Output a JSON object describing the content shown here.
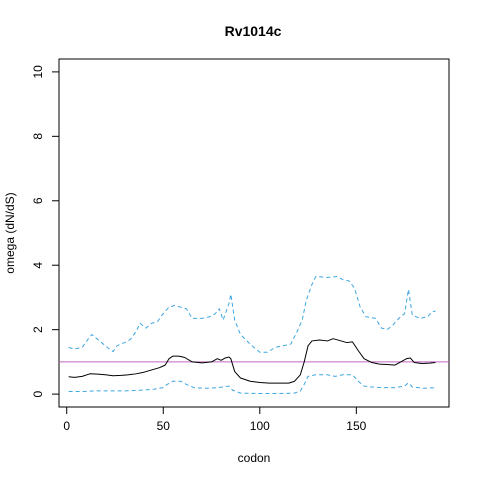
{
  "chart_data": {
    "type": "line",
    "title": "Rv1014c",
    "xlabel": "codon",
    "ylabel": "omega (dN/dS)",
    "xlim": [
      -4,
      198
    ],
    "ylim": [
      -0.4,
      10.4
    ],
    "xticks": [
      0,
      50,
      100,
      150
    ],
    "yticks": [
      0,
      2,
      4,
      6,
      8,
      10
    ],
    "grid": false,
    "legend": "none",
    "reference_line": {
      "y": 1,
      "color": "#c266c2"
    },
    "series": [
      {
        "role": "estimate",
        "color": "#000000",
        "dash": "solid",
        "points": [
          [
            1,
            0.54
          ],
          [
            4,
            0.52
          ],
          [
            8,
            0.55
          ],
          [
            12,
            0.63
          ],
          [
            16,
            0.62
          ],
          [
            20,
            0.6
          ],
          [
            24,
            0.57
          ],
          [
            28,
            0.58
          ],
          [
            32,
            0.6
          ],
          [
            36,
            0.63
          ],
          [
            40,
            0.68
          ],
          [
            44,
            0.75
          ],
          [
            48,
            0.82
          ],
          [
            51,
            0.9
          ],
          [
            53,
            1.1
          ],
          [
            55,
            1.18
          ],
          [
            58,
            1.18
          ],
          [
            61,
            1.14
          ],
          [
            65,
            1.0
          ],
          [
            70,
            0.97
          ],
          [
            75,
            1.0
          ],
          [
            78,
            1.1
          ],
          [
            80,
            1.05
          ],
          [
            82,
            1.12
          ],
          [
            84,
            1.15
          ],
          [
            85,
            1.1
          ],
          [
            87,
            0.7
          ],
          [
            90,
            0.5
          ],
          [
            95,
            0.4
          ],
          [
            100,
            0.36
          ],
          [
            105,
            0.34
          ],
          [
            110,
            0.34
          ],
          [
            115,
            0.34
          ],
          [
            118,
            0.4
          ],
          [
            121,
            0.6
          ],
          [
            123,
            1.0
          ],
          [
            125,
            1.5
          ],
          [
            127,
            1.65
          ],
          [
            131,
            1.68
          ],
          [
            135,
            1.65
          ],
          [
            138,
            1.72
          ],
          [
            141,
            1.67
          ],
          [
            145,
            1.6
          ],
          [
            148,
            1.62
          ],
          [
            151,
            1.35
          ],
          [
            154,
            1.1
          ],
          [
            158,
            0.98
          ],
          [
            162,
            0.93
          ],
          [
            166,
            0.92
          ],
          [
            170,
            0.9
          ],
          [
            173,
            1.0
          ],
          [
            176,
            1.1
          ],
          [
            178,
            1.12
          ],
          [
            180,
            0.98
          ],
          [
            184,
            0.95
          ],
          [
            188,
            0.96
          ],
          [
            191,
            0.98
          ]
        ]
      },
      {
        "role": "upper-bound",
        "color": "#3ea6e0",
        "dash": "dashed",
        "points": [
          [
            1,
            1.45
          ],
          [
            4,
            1.4
          ],
          [
            8,
            1.45
          ],
          [
            11,
            1.7
          ],
          [
            13,
            1.85
          ],
          [
            16,
            1.7
          ],
          [
            20,
            1.5
          ],
          [
            24,
            1.32
          ],
          [
            26,
            1.5
          ],
          [
            30,
            1.6
          ],
          [
            33,
            1.7
          ],
          [
            36,
            1.95
          ],
          [
            38,
            2.2
          ],
          [
            41,
            2.05
          ],
          [
            44,
            2.2
          ],
          [
            47,
            2.25
          ],
          [
            50,
            2.5
          ],
          [
            53,
            2.7
          ],
          [
            56,
            2.75
          ],
          [
            62,
            2.65
          ],
          [
            65,
            2.35
          ],
          [
            70,
            2.35
          ],
          [
            74,
            2.4
          ],
          [
            77,
            2.5
          ],
          [
            79,
            2.65
          ],
          [
            81,
            2.3
          ],
          [
            84,
            2.8
          ],
          [
            85,
            3.1
          ],
          [
            87,
            2.3
          ],
          [
            90,
            1.85
          ],
          [
            95,
            1.55
          ],
          [
            100,
            1.3
          ],
          [
            104,
            1.3
          ],
          [
            108,
            1.45
          ],
          [
            112,
            1.5
          ],
          [
            116,
            1.55
          ],
          [
            119,
            1.9
          ],
          [
            122,
            2.3
          ],
          [
            124,
            2.9
          ],
          [
            127,
            3.4
          ],
          [
            129,
            3.65
          ],
          [
            135,
            3.62
          ],
          [
            140,
            3.65
          ],
          [
            143,
            3.55
          ],
          [
            146,
            3.52
          ],
          [
            149,
            3.3
          ],
          [
            152,
            2.7
          ],
          [
            155,
            2.4
          ],
          [
            160,
            2.35
          ],
          [
            163,
            2.05
          ],
          [
            166,
            2.0
          ],
          [
            169,
            2.15
          ],
          [
            172,
            2.35
          ],
          [
            175,
            2.5
          ],
          [
            177,
            3.25
          ],
          [
            179,
            2.45
          ],
          [
            183,
            2.35
          ],
          [
            187,
            2.4
          ],
          [
            189,
            2.55
          ],
          [
            191,
            2.58
          ]
        ]
      },
      {
        "role": "lower-bound",
        "color": "#3ea6e0",
        "dash": "dashed",
        "points": [
          [
            1,
            0.08
          ],
          [
            8,
            0.08
          ],
          [
            15,
            0.1
          ],
          [
            22,
            0.1
          ],
          [
            30,
            0.1
          ],
          [
            38,
            0.12
          ],
          [
            45,
            0.15
          ],
          [
            50,
            0.2
          ],
          [
            52,
            0.3
          ],
          [
            55,
            0.4
          ],
          [
            59,
            0.4
          ],
          [
            62,
            0.3
          ],
          [
            66,
            0.2
          ],
          [
            72,
            0.18
          ],
          [
            78,
            0.2
          ],
          [
            84,
            0.25
          ],
          [
            86,
            0.12
          ],
          [
            90,
            0.03
          ],
          [
            100,
            0.02
          ],
          [
            110,
            0.02
          ],
          [
            118,
            0.03
          ],
          [
            121,
            0.1
          ],
          [
            123,
            0.3
          ],
          [
            125,
            0.55
          ],
          [
            129,
            0.6
          ],
          [
            135,
            0.6
          ],
          [
            139,
            0.55
          ],
          [
            143,
            0.6
          ],
          [
            148,
            0.6
          ],
          [
            151,
            0.4
          ],
          [
            154,
            0.25
          ],
          [
            158,
            0.22
          ],
          [
            164,
            0.2
          ],
          [
            170,
            0.2
          ],
          [
            175,
            0.25
          ],
          [
            177,
            0.35
          ],
          [
            179,
            0.22
          ],
          [
            185,
            0.18
          ],
          [
            191,
            0.2
          ]
        ]
      }
    ]
  }
}
